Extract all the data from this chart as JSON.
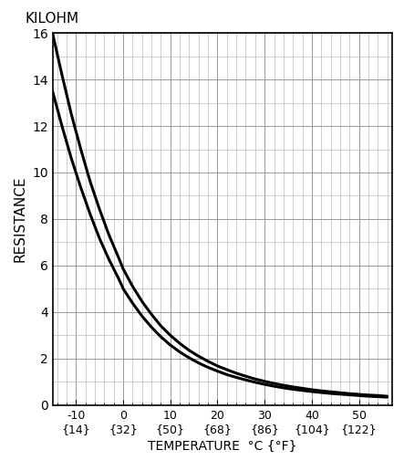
{
  "title_top": "KILOHM",
  "ylabel": "RESISTANCE",
  "xlabel": "TEMPERATURE  °C {°F}",
  "xlim": [
    -15,
    57
  ],
  "ylim": [
    0,
    16
  ],
  "yticks_major": [
    0,
    2,
    4,
    6,
    8,
    10,
    12,
    14,
    16
  ],
  "xticks_celsius": [
    -10,
    0,
    10,
    20,
    30,
    40,
    50
  ],
  "xticks_fahrenheit": [
    14,
    32,
    50,
    68,
    86,
    104,
    122
  ],
  "grid_major_color": "#999999",
  "grid_minor_color": "#bbbbbb",
  "line_color": "#000000",
  "line_width": 2.2,
  "bg_color": "#ffffff",
  "curve1_temps": [
    -15,
    -13,
    -11,
    -9,
    -7,
    -5,
    -3,
    -1,
    0,
    2,
    4,
    6,
    8,
    10,
    12,
    14,
    16,
    18,
    20,
    22,
    24,
    26,
    28,
    30,
    32,
    34,
    36,
    38,
    40,
    42,
    44,
    46,
    48,
    50,
    52,
    54,
    56
  ],
  "curve1_resist": [
    16.0,
    14.2,
    12.5,
    11.0,
    9.6,
    8.4,
    7.3,
    6.35,
    5.85,
    5.1,
    4.45,
    3.9,
    3.4,
    3.0,
    2.65,
    2.35,
    2.1,
    1.88,
    1.68,
    1.52,
    1.37,
    1.24,
    1.12,
    1.02,
    0.93,
    0.85,
    0.78,
    0.72,
    0.66,
    0.61,
    0.57,
    0.53,
    0.49,
    0.46,
    0.43,
    0.41,
    0.38
  ],
  "curve2_temps": [
    -15,
    -13,
    -11,
    -9,
    -7,
    -5,
    -3,
    -1,
    0,
    2,
    4,
    6,
    8,
    10,
    12,
    14,
    16,
    18,
    20,
    22,
    24,
    26,
    28,
    30,
    32,
    34,
    36,
    38,
    40,
    42,
    44,
    46,
    48,
    50,
    52,
    54,
    56
  ],
  "curve2_resist": [
    13.5,
    12.0,
    10.6,
    9.35,
    8.2,
    7.15,
    6.25,
    5.45,
    5.0,
    4.38,
    3.82,
    3.35,
    2.93,
    2.58,
    2.28,
    2.03,
    1.81,
    1.62,
    1.46,
    1.31,
    1.19,
    1.08,
    0.98,
    0.89,
    0.81,
    0.74,
    0.68,
    0.63,
    0.58,
    0.54,
    0.5,
    0.47,
    0.44,
    0.41,
    0.38,
    0.36,
    0.34
  ],
  "x_minor_interval": 2,
  "y_minor_interval": 1,
  "x_major_interval": 10,
  "y_major_interval": 2
}
